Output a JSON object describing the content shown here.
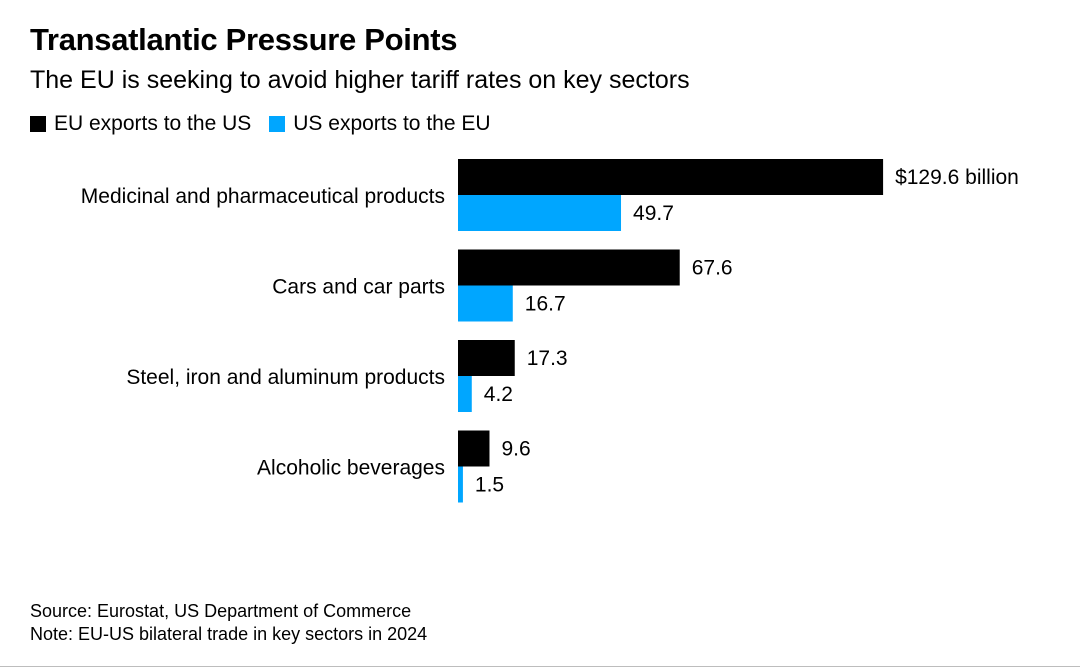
{
  "header": {
    "title": "Transatlantic Pressure Points",
    "subtitle": "The EU is seeking to avoid higher tariff rates on key sectors"
  },
  "legend": [
    {
      "label": "EU exports to the US",
      "color": "#000000"
    },
    {
      "label": "US exports to the EU",
      "color": "#00a6ff"
    }
  ],
  "chart_data": {
    "type": "bar",
    "orientation": "horizontal",
    "categories": [
      "Medicinal and pharmaceutical products",
      "Cars and car parts",
      "Steel, iron and aluminum products",
      "Alcoholic beverages"
    ],
    "series": [
      {
        "name": "EU exports to the US",
        "color": "#000000",
        "values": [
          129.6,
          67.6,
          17.3,
          9.6
        ],
        "value_labels": [
          "$129.6 billion",
          "67.6",
          "17.3",
          "9.6"
        ]
      },
      {
        "name": "US exports to the EU",
        "color": "#00a6ff",
        "values": [
          49.7,
          16.7,
          4.2,
          1.5
        ],
        "value_labels": [
          "49.7",
          "16.7",
          "4.2",
          "1.5"
        ]
      }
    ],
    "title": "Transatlantic Pressure Points",
    "subtitle": "The EU is seeking to avoid higher tariff rates on key sectors",
    "legend_position": "top-left",
    "grid": false
  },
  "footer": {
    "source": "Source: Eurostat, US Department of Commerce",
    "note": "Note: EU-US bilateral trade in key sectors in 2024"
  }
}
